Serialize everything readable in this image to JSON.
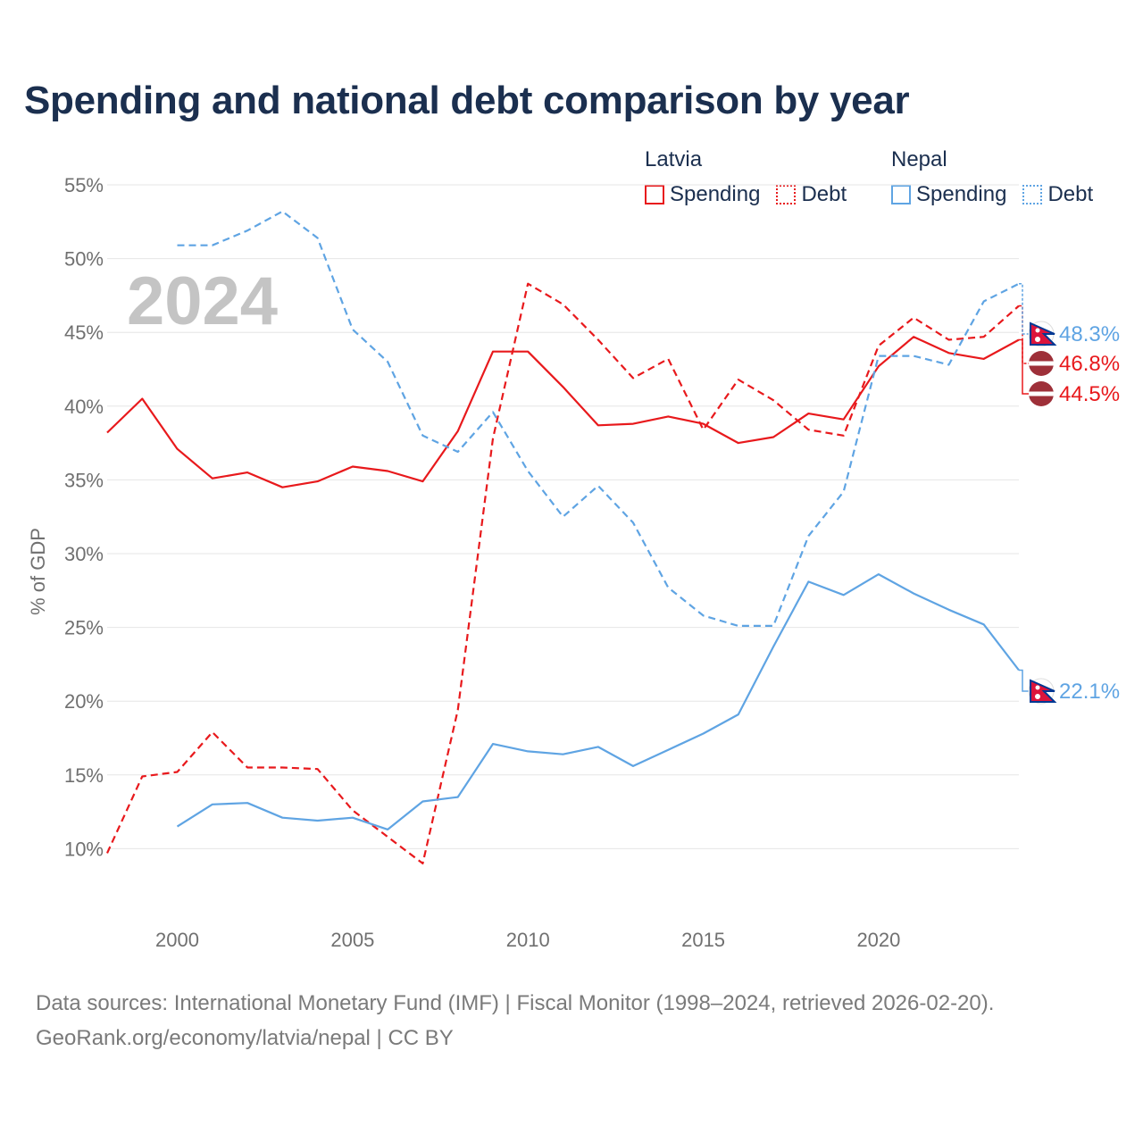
{
  "title": "Spending and national debt comparison by year",
  "legend": {
    "groups": [
      {
        "country": "Latvia",
        "items": [
          {
            "label": "Spending"
          },
          {
            "label": "Debt"
          }
        ]
      },
      {
        "country": "Nepal",
        "items": [
          {
            "label": "Spending"
          },
          {
            "label": "Debt"
          }
        ]
      }
    ]
  },
  "colors": {
    "latvia": "#e8191c",
    "nepal": "#5fa4e3",
    "grid": "#e6e6e6",
    "axis_text": "#707070",
    "year_label": "#c4c4c4"
  },
  "source": {
    "line1": "Data sources: International Monetary Fund (IMF) | Fiscal Monitor (1998–2024, retrieved 2026-02-20).",
    "line2": "GeoRank.org/economy/latvia/nepal | CC BY"
  },
  "chart_data": {
    "type": "line",
    "title": "Spending and national debt comparison by year",
    "year_label": "2024",
    "ylabel": "% of GDP",
    "xlabel": "",
    "ylim": [
      5,
      55
    ],
    "xlim": [
      1998,
      2024
    ],
    "yticks": [
      10,
      15,
      20,
      25,
      30,
      35,
      40,
      45,
      50,
      55
    ],
    "ytick_labels": [
      "10%",
      "15%",
      "20%",
      "25%",
      "30%",
      "35%",
      "40%",
      "45%",
      "50%",
      "55%"
    ],
    "xticks": [
      2000,
      2005,
      2010,
      2015,
      2020
    ],
    "xtick_labels": [
      "2000",
      "2005",
      "2010",
      "2015",
      "2020"
    ],
    "x": [
      1998,
      1999,
      2000,
      2001,
      2002,
      2003,
      2004,
      2005,
      2006,
      2007,
      2008,
      2009,
      2010,
      2011,
      2012,
      2013,
      2014,
      2015,
      2016,
      2017,
      2018,
      2019,
      2020,
      2021,
      2022,
      2023,
      2024
    ],
    "series": [
      {
        "name": "Latvia Spending",
        "country": "Latvia",
        "metric": "Spending",
        "color": "#e8191c",
        "dash": "solid",
        "values": [
          38.2,
          40.5,
          37.1,
          35.1,
          35.5,
          34.5,
          34.9,
          35.9,
          35.6,
          34.9,
          38.3,
          43.7,
          43.7,
          41.3,
          38.7,
          38.8,
          39.3,
          38.8,
          37.5,
          37.9,
          39.5,
          39.1,
          42.7,
          44.7,
          43.6,
          43.2,
          44.5
        ],
        "end_label": "44.5%"
      },
      {
        "name": "Latvia Debt",
        "country": "Latvia",
        "metric": "Debt",
        "color": "#e8191c",
        "dash": "dashed",
        "values": [
          9.7,
          14.9,
          15.2,
          17.9,
          15.5,
          15.5,
          15.4,
          12.6,
          10.8,
          9.0,
          19.4,
          37.8,
          48.3,
          46.9,
          44.5,
          41.9,
          43.2,
          38.4,
          41.8,
          40.4,
          38.4,
          38.0,
          44.1,
          46.0,
          44.5,
          44.7,
          46.8
        ],
        "end_label": "46.8%"
      },
      {
        "name": "Nepal Spending",
        "country": "Nepal",
        "metric": "Spending",
        "color": "#5fa4e3",
        "dash": "solid",
        "values": [
          null,
          null,
          11.5,
          13.0,
          13.1,
          12.1,
          11.9,
          12.1,
          11.3,
          13.2,
          13.5,
          17.1,
          16.6,
          16.4,
          16.9,
          15.6,
          16.7,
          17.8,
          19.1,
          23.7,
          28.1,
          27.2,
          28.6,
          27.3,
          26.2,
          25.2,
          22.1
        ],
        "end_label": "22.1%"
      },
      {
        "name": "Nepal Debt",
        "country": "Nepal",
        "metric": "Debt",
        "color": "#5fa4e3",
        "dash": "dashed",
        "values": [
          null,
          null,
          50.9,
          50.9,
          51.9,
          53.2,
          51.4,
          45.2,
          43.0,
          38.0,
          36.9,
          39.6,
          35.6,
          32.5,
          34.6,
          32.1,
          27.7,
          25.8,
          25.1,
          25.1,
          31.2,
          34.2,
          43.4,
          43.4,
          42.8,
          47.1,
          48.3
        ],
        "end_label": "48.3%"
      }
    ]
  }
}
